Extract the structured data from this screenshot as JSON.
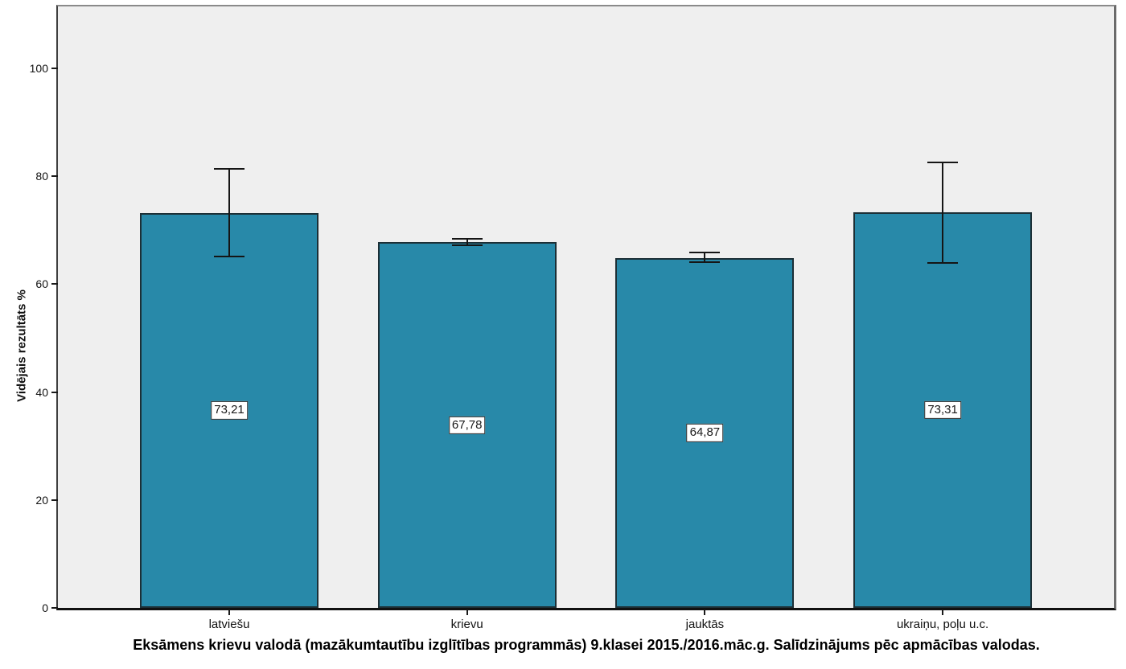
{
  "chart_data": {
    "type": "bar",
    "title": "Eksāmens krievu valodā (mazākumtautību izglītības programmās) 9.klasei 2015./2016.māc.g. Salīdzinājums pēc apmācības valodas.",
    "ylabel": "Vidējais rezultāts %",
    "xlabel": "",
    "categories": [
      "latviešu",
      "krievu",
      "jauktās",
      "ukraiņu, poļu u.c."
    ],
    "values": [
      73.21,
      67.78,
      64.87,
      73.31
    ],
    "value_labels": [
      "73,21",
      "67,78",
      "64,87",
      "73,31"
    ],
    "error_low": [
      65.2,
      67.2,
      64.1,
      64.0
    ],
    "error_high": [
      81.3,
      68.4,
      65.9,
      82.6
    ],
    "y_ticks": [
      0,
      20,
      40,
      60,
      80,
      100
    ],
    "y_tick_labels": [
      "0",
      "20",
      "40",
      "60",
      "80",
      "100"
    ],
    "ylim": [
      0,
      111.5
    ],
    "grid": false,
    "legend": "none",
    "colors": {
      "bar_fill": "#2889a9",
      "bar_border": "#1c2f36",
      "plot_background": "#efefef",
      "page_background": "#ffffff",
      "error_bar": "#151515",
      "text": "#111111"
    }
  }
}
